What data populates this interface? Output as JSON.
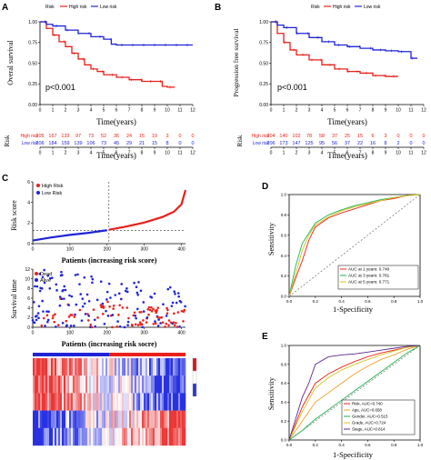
{
  "colors": {
    "high": "#e8211a",
    "low": "#1f24d6",
    "axis": "#000000",
    "green": "#22b14c",
    "orange": "#f2a02a",
    "yellow": "#d4c41c",
    "purple": "#5b2a8e"
  },
  "panels": {
    "A": {
      "letter": "A",
      "legend": [
        "Risk",
        "High risk",
        "Low risk"
      ],
      "pvalue": "p<0.001",
      "ylabel": "Overal survival",
      "xlabel": "Time(years)",
      "risk_title": "Risk",
      "risk_xlabel": "Time(years)",
      "row_high": "High risk",
      "row_low": "Low risk",
      "high_counts": [
        "205",
        "167",
        "133",
        "97",
        "73",
        "52",
        "36",
        "24",
        "15",
        "10",
        "3",
        "0",
        "0"
      ],
      "low_counts": [
        "206",
        "184",
        "159",
        "139",
        "106",
        "73",
        "45",
        "29",
        "21",
        "15",
        "8",
        "0",
        "0"
      ]
    },
    "B": {
      "letter": "B",
      "legend": [
        "Risk",
        "High risk",
        "Low risk"
      ],
      "pvalue": "p<0.001",
      "ylabel": "Progression free survival",
      "xlabel": "Time(years)",
      "risk_title": "Risk",
      "risk_xlabel": "Time(years)",
      "row_high": "High risk",
      "row_low": "Low risk",
      "high_counts": [
        "204",
        "140",
        "102",
        "78",
        "58",
        "37",
        "25",
        "15",
        "6",
        "3",
        "0",
        "0",
        "0"
      ],
      "low_counts": [
        "206",
        "173",
        "147",
        "125",
        "95",
        "56",
        "37",
        "22",
        "16",
        "8",
        "2",
        "0",
        "0"
      ]
    },
    "C": {
      "letter": "C",
      "top_legend": [
        "High Risk",
        "Low Risk"
      ],
      "top_ylabel": "Risk score",
      "top_xlabel": "Patients (increasing risk score)",
      "mid_legend": [
        "Dead",
        "Alive"
      ],
      "mid_ylabel": "Survival time",
      "mid_xlabel": "Patients (increasing risk socre)"
    },
    "D": {
      "letter": "D",
      "xlabel": "1-Specificity",
      "ylabel": "Sensitivity",
      "legend": [
        "AUC at 1 years: 0.740",
        "AUC at 3 years: 0.781",
        "AUC at 5 years: 0.771"
      ]
    },
    "E": {
      "letter": "E",
      "xlabel": "1-Specificity",
      "ylabel": "Sensitivity",
      "legend": [
        "Risk, AUC=0.740",
        "Age, AUC=0.658",
        "Gender, AUC=0.515",
        "Grade, AUC=0.724",
        "Stage, AUC=0.814"
      ]
    }
  },
  "chart_data": [
    {
      "type": "line",
      "panel": "A",
      "xlabel": "Time(years)",
      "ylabel": "Overal survival",
      "xlim": [
        0,
        12
      ],
      "ylim": [
        0,
        1
      ],
      "xticks": [
        "0",
        "1",
        "2",
        "3",
        "4",
        "5",
        "6",
        "7",
        "8",
        "9",
        "10",
        "11",
        "12"
      ],
      "yticks": [
        "0.00",
        "0.25",
        "0.50",
        "0.75",
        "1.00"
      ],
      "series": [
        {
          "name": "High risk",
          "x": [
            0,
            0.5,
            1,
            1.5,
            2,
            2.5,
            3,
            3.5,
            4,
            4.5,
            5,
            6,
            7,
            8,
            9,
            9.6,
            10,
            10.6
          ],
          "values": [
            1,
            0.92,
            0.84,
            0.76,
            0.7,
            0.62,
            0.55,
            0.48,
            0.43,
            0.4,
            0.36,
            0.33,
            0.3,
            0.28,
            0.28,
            0.22,
            0.21,
            0.21
          ]
        },
        {
          "name": "Low risk",
          "x": [
            0,
            0.5,
            1,
            2,
            3,
            4,
            5,
            5.6,
            6,
            7,
            8,
            9,
            10,
            11,
            12
          ],
          "values": [
            1,
            0.97,
            0.95,
            0.9,
            0.86,
            0.82,
            0.79,
            0.73,
            0.72,
            0.72,
            0.72,
            0.72,
            0.72,
            0.72,
            0.72
          ]
        }
      ]
    },
    {
      "type": "line",
      "panel": "B",
      "xlabel": "Time(years)",
      "ylabel": "Progression free survival",
      "xlim": [
        0,
        12
      ],
      "ylim": [
        0,
        1
      ],
      "xticks": [
        "0",
        "1",
        "2",
        "3",
        "4",
        "5",
        "6",
        "7",
        "8",
        "9",
        "10",
        "11",
        "12"
      ],
      "yticks": [
        "0.00",
        "0.25",
        "0.50",
        "0.75",
        "1.00"
      ],
      "series": [
        {
          "name": "High risk",
          "x": [
            0,
            0.5,
            1,
            1.5,
            2,
            3,
            4,
            5,
            6,
            7,
            8,
            9,
            10
          ],
          "values": [
            1,
            0.86,
            0.75,
            0.66,
            0.6,
            0.54,
            0.48,
            0.43,
            0.4,
            0.38,
            0.35,
            0.34,
            0.34
          ]
        },
        {
          "name": "Low risk",
          "x": [
            0,
            0.5,
            1,
            2,
            3,
            4,
            5,
            6,
            7,
            8,
            9,
            10,
            10.5,
            11,
            11.5
          ],
          "values": [
            1,
            0.96,
            0.93,
            0.86,
            0.81,
            0.76,
            0.72,
            0.7,
            0.68,
            0.66,
            0.65,
            0.64,
            0.64,
            0.56,
            0.56
          ]
        }
      ]
    },
    {
      "type": "scatter",
      "panel": "C-risk-score",
      "xlabel": "Patients (increasing risk score)",
      "ylabel": "Risk score",
      "xlim": [
        0,
        411
      ],
      "ylim": [
        0,
        6
      ],
      "cutoff_patient": 205,
      "cutoff_score": 1.3,
      "xticks": [
        "0",
        "100",
        "200",
        "300",
        "400"
      ],
      "yticks": [
        "0",
        "2",
        "4",
        "6"
      ],
      "series": [
        {
          "name": "Low Risk",
          "x": [
            0,
            50,
            100,
            150,
            200
          ],
          "values": [
            0.3,
            0.6,
            0.85,
            1.05,
            1.3
          ]
        },
        {
          "name": "High Risk",
          "x": [
            205,
            250,
            300,
            350,
            380,
            400,
            411
          ],
          "values": [
            1.35,
            1.65,
            2.05,
            2.6,
            3.1,
            3.8,
            5.2
          ]
        }
      ]
    },
    {
      "type": "scatter",
      "panel": "C-survival-time",
      "xlabel": "Patients (increasing risk socre)",
      "ylabel": "Survival time",
      "xlim": [
        0,
        411
      ],
      "ylim": [
        0,
        12
      ],
      "xticks": [
        "0",
        "100",
        "200",
        "300",
        "400"
      ],
      "yticks": [
        "0",
        "2",
        "4",
        "6",
        "8",
        "10",
        "12"
      ],
      "series": [
        {
          "name": "Dead"
        },
        {
          "name": "Alive"
        }
      ]
    },
    {
      "type": "heatmap",
      "panel": "C-heatmap",
      "columns": 411,
      "rows": 5,
      "cutoff_patient": 205
    },
    {
      "type": "line",
      "panel": "D",
      "xlabel": "1-Specificity",
      "ylabel": "Sensitivity",
      "xlim": [
        0,
        1
      ],
      "ylim": [
        0,
        1
      ],
      "xticks": [
        "0.0",
        "0.2",
        "0.4",
        "0.6",
        "0.8",
        "1.0"
      ],
      "yticks": [
        "0.0",
        "0.2",
        "0.4",
        "0.6",
        "0.8",
        "1.0"
      ],
      "series": [
        {
          "name": "AUC at 1 years: 0.740",
          "x": [
            0,
            0.05,
            0.1,
            0.15,
            0.2,
            0.3,
            0.4,
            0.5,
            0.6,
            0.7,
            0.8,
            0.9,
            1
          ],
          "values": [
            0,
            0.18,
            0.35,
            0.55,
            0.68,
            0.77,
            0.82,
            0.86,
            0.9,
            0.94,
            0.96,
            0.99,
            1
          ]
        },
        {
          "name": "AUC at 3 years: 0.781",
          "x": [
            0,
            0.05,
            0.1,
            0.15,
            0.2,
            0.3,
            0.4,
            0.5,
            0.6,
            0.7,
            0.8,
            0.9,
            1
          ],
          "values": [
            0,
            0.3,
            0.52,
            0.62,
            0.72,
            0.8,
            0.85,
            0.89,
            0.92,
            0.95,
            0.97,
            0.99,
            1
          ]
        },
        {
          "name": "AUC at 5 years: 0.771",
          "x": [
            0,
            0.05,
            0.1,
            0.15,
            0.2,
            0.3,
            0.4,
            0.5,
            0.6,
            0.7,
            0.8,
            0.9,
            1
          ],
          "values": [
            0,
            0.22,
            0.45,
            0.6,
            0.7,
            0.78,
            0.84,
            0.88,
            0.91,
            0.94,
            0.97,
            0.99,
            1
          ]
        }
      ]
    },
    {
      "type": "line",
      "panel": "E",
      "xlabel": "1-Specificity",
      "ylabel": "Sensitivity",
      "xlim": [
        0,
        1
      ],
      "ylim": [
        0,
        1
      ],
      "xticks": [
        "0.0",
        "0.2",
        "0.4",
        "0.6",
        "0.8",
        "1.0"
      ],
      "yticks": [
        "0.0",
        "0.2",
        "0.4",
        "0.6",
        "0.8",
        "1.0"
      ],
      "series": [
        {
          "name": "Risk, AUC=0.740",
          "x": [
            0,
            0.1,
            0.2,
            0.3,
            0.4,
            0.5,
            0.6,
            0.7,
            0.8,
            0.9,
            1
          ],
          "values": [
            0,
            0.35,
            0.6,
            0.7,
            0.77,
            0.83,
            0.88,
            0.92,
            0.95,
            0.98,
            1
          ]
        },
        {
          "name": "Age, AUC=0.658",
          "x": [
            0,
            0.1,
            0.2,
            0.3,
            0.4,
            0.5,
            0.6,
            0.7,
            0.8,
            0.9,
            1
          ],
          "values": [
            0,
            0.2,
            0.4,
            0.5,
            0.6,
            0.7,
            0.78,
            0.85,
            0.9,
            0.96,
            1
          ]
        },
        {
          "name": "Gender, AUC=0.515",
          "x": [
            0,
            0.1,
            0.2,
            0.3,
            0.4,
            0.5,
            0.6,
            0.7,
            0.8,
            0.9,
            1
          ],
          "values": [
            0,
            0.1,
            0.22,
            0.32,
            0.42,
            0.52,
            0.62,
            0.72,
            0.82,
            0.92,
            1
          ]
        },
        {
          "name": "Grade, AUC=0.724",
          "x": [
            0,
            0.1,
            0.2,
            0.3,
            0.4,
            0.5,
            0.6,
            0.7,
            0.8,
            0.9,
            1
          ],
          "values": [
            0,
            0.3,
            0.55,
            0.66,
            0.74,
            0.8,
            0.85,
            0.9,
            0.94,
            0.98,
            1
          ]
        },
        {
          "name": "Stage, AUC=0.814",
          "x": [
            0,
            0.1,
            0.15,
            0.2,
            0.3,
            0.4,
            0.5,
            0.6,
            0.7,
            0.8,
            0.9,
            1
          ],
          "values": [
            0,
            0.45,
            0.6,
            0.8,
            0.88,
            0.9,
            0.91,
            0.93,
            0.95,
            0.97,
            0.99,
            1
          ]
        }
      ]
    }
  ]
}
